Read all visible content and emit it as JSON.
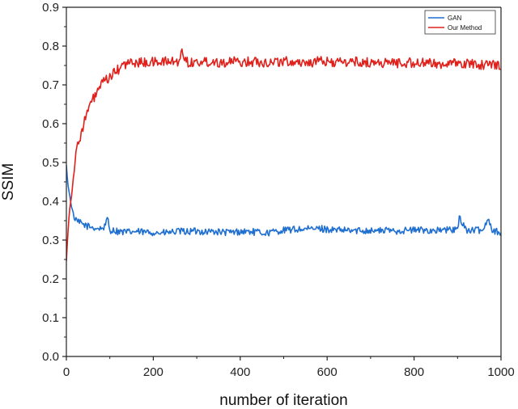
{
  "chart_data": {
    "type": "line",
    "title": "",
    "xlabel": "number of iteration",
    "ylabel": "SSIM",
    "xlim": [
      0,
      1000
    ],
    "ylim": [
      0.0,
      0.9
    ],
    "xticks": [
      0,
      200,
      400,
      600,
      800,
      1000
    ],
    "yticks": [
      0.0,
      0.1,
      0.2,
      0.3,
      0.4,
      0.5,
      0.6,
      0.7,
      0.8,
      0.9
    ],
    "xtick_labels": [
      "0",
      "200",
      "400",
      "600",
      "800",
      "1000"
    ],
    "ytick_labels": [
      "0.0",
      "0.1",
      "0.2",
      "0.3",
      "0.4",
      "0.5",
      "0.6",
      "0.7",
      "0.8",
      "0.9"
    ],
    "grid": false,
    "legend_position": "top-right",
    "series": [
      {
        "name": "GAN",
        "color": "#1f6fd1",
        "x": [
          0,
          5,
          10,
          15,
          20,
          30,
          40,
          50,
          60,
          70,
          80,
          90,
          95,
          100,
          110,
          120,
          140,
          160,
          180,
          200,
          220,
          240,
          260,
          280,
          300,
          320,
          340,
          360,
          380,
          400,
          420,
          440,
          460,
          480,
          500,
          520,
          540,
          560,
          580,
          600,
          620,
          640,
          660,
          680,
          700,
          720,
          740,
          760,
          780,
          800,
          820,
          840,
          860,
          880,
          900,
          905,
          920,
          940,
          960,
          970,
          980,
          1000
        ],
        "y": [
          0.49,
          0.43,
          0.4,
          0.37,
          0.35,
          0.345,
          0.34,
          0.335,
          0.333,
          0.33,
          0.33,
          0.335,
          0.36,
          0.325,
          0.325,
          0.322,
          0.32,
          0.322,
          0.32,
          0.32,
          0.318,
          0.32,
          0.322,
          0.322,
          0.323,
          0.322,
          0.322,
          0.32,
          0.32,
          0.322,
          0.322,
          0.32,
          0.318,
          0.322,
          0.325,
          0.327,
          0.328,
          0.328,
          0.33,
          0.328,
          0.325,
          0.325,
          0.324,
          0.325,
          0.325,
          0.324,
          0.325,
          0.324,
          0.325,
          0.326,
          0.326,
          0.325,
          0.325,
          0.326,
          0.327,
          0.36,
          0.325,
          0.325,
          0.326,
          0.36,
          0.325,
          0.32
        ]
      },
      {
        "name": "Our Method",
        "color": "#e0201b",
        "x": [
          0,
          2,
          4,
          6,
          8,
          10,
          15,
          20,
          25,
          30,
          40,
          50,
          60,
          70,
          80,
          90,
          100,
          110,
          120,
          130,
          140,
          150,
          160,
          180,
          200,
          220,
          240,
          260,
          265,
          280,
          300,
          320,
          340,
          360,
          380,
          400,
          420,
          440,
          460,
          480,
          500,
          520,
          540,
          560,
          580,
          600,
          620,
          640,
          660,
          680,
          700,
          720,
          740,
          760,
          780,
          800,
          820,
          840,
          860,
          880,
          900,
          920,
          940,
          960,
          980,
          1000
        ],
        "y": [
          0.25,
          0.29,
          0.33,
          0.36,
          0.38,
          0.4,
          0.45,
          0.5,
          0.54,
          0.56,
          0.6,
          0.635,
          0.66,
          0.68,
          0.7,
          0.71,
          0.72,
          0.73,
          0.74,
          0.75,
          0.755,
          0.757,
          0.757,
          0.758,
          0.758,
          0.76,
          0.76,
          0.76,
          0.785,
          0.758,
          0.758,
          0.76,
          0.76,
          0.758,
          0.76,
          0.758,
          0.76,
          0.76,
          0.758,
          0.76,
          0.76,
          0.76,
          0.758,
          0.758,
          0.76,
          0.76,
          0.758,
          0.758,
          0.76,
          0.758,
          0.757,
          0.757,
          0.757,
          0.757,
          0.757,
          0.757,
          0.756,
          0.755,
          0.755,
          0.755,
          0.754,
          0.754,
          0.754,
          0.752,
          0.752,
          0.752
        ]
      }
    ]
  }
}
